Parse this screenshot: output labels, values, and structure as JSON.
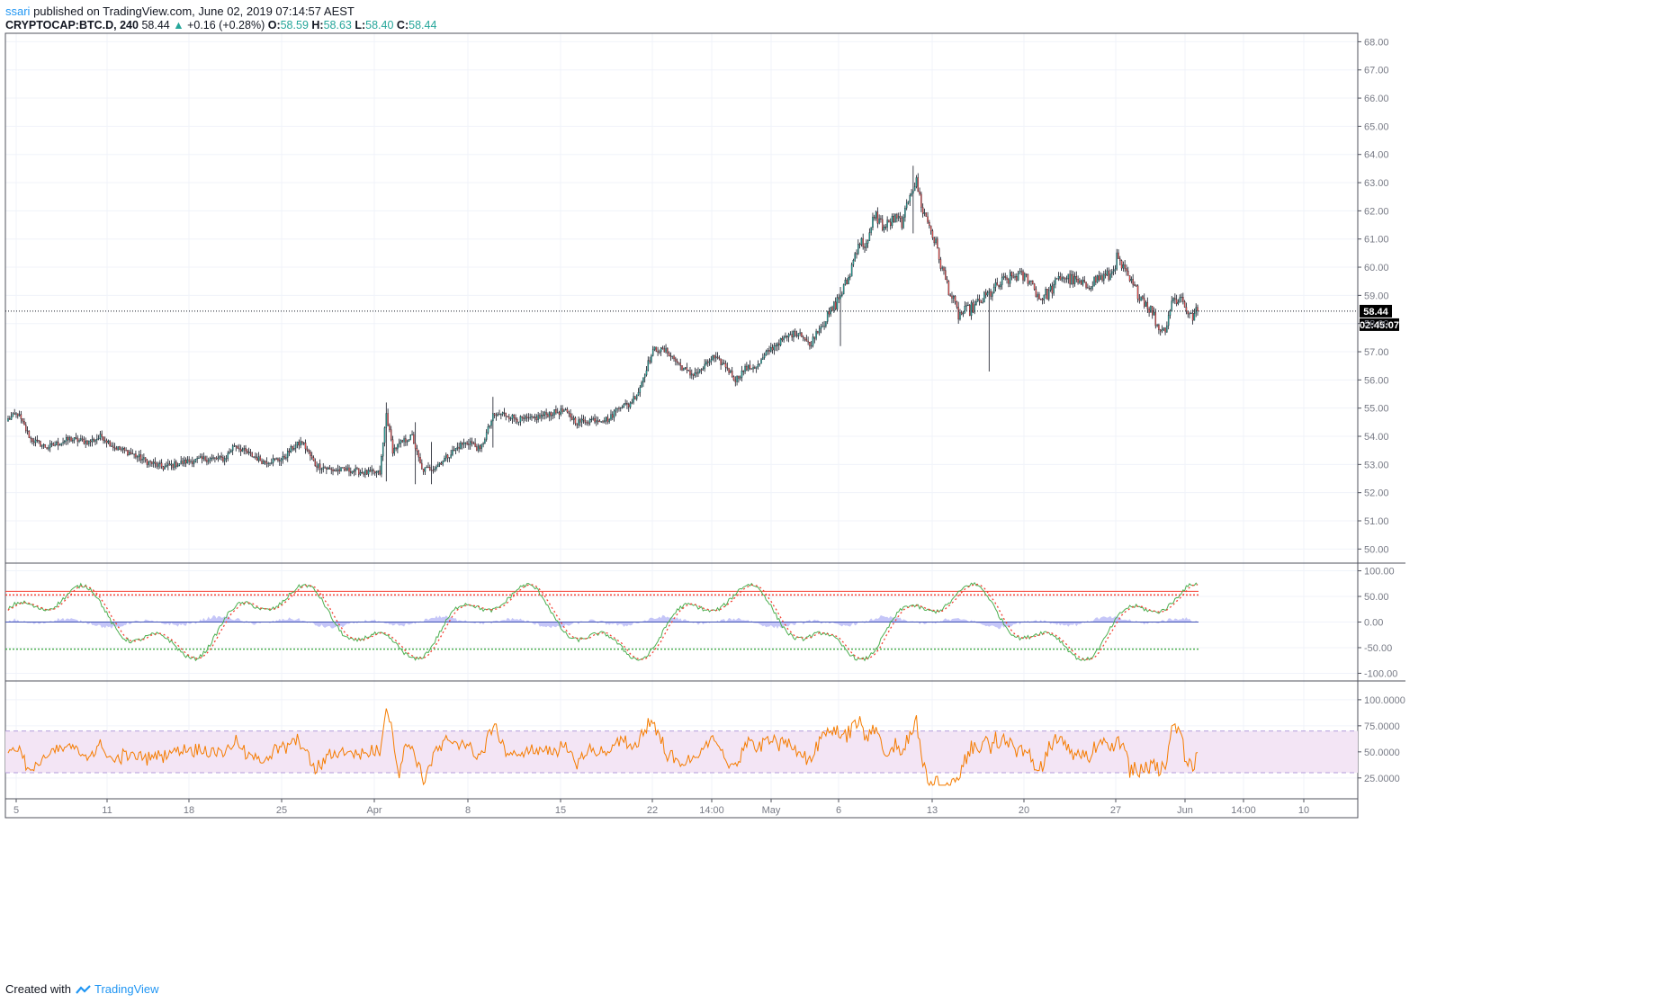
{
  "header": {
    "author": "ssari",
    "published_text": "published on TradingView.com, June 02, 2019 07:14:57 AEST",
    "symbol": "CRYPTOCAP:BTC.D, 240",
    "last": "58.44",
    "change": "+0.16 (+0.28%)",
    "o_label": "O:",
    "o": "58.59",
    "h_label": "H:",
    "h": "58.63",
    "l_label": "L:",
    "l": "58.40",
    "c_label": "C:",
    "c": "58.44"
  },
  "price_tag": {
    "value": "58.44",
    "countdown": "02:45:07"
  },
  "footer": {
    "created_with": "Created with",
    "brand": "TradingView"
  },
  "colors": {
    "up": "#26a69a",
    "down": "#ef5350",
    "wick": "#131722",
    "stoch_k": "#4caf50",
    "stoch_d": "#f44336",
    "histogram": "#9598f2",
    "rsi_line": "#f57c00",
    "rsi_band": "#f3e5f5",
    "grid": "#f0f3fa"
  },
  "chart_data": [
    {
      "type": "candlestick",
      "title": "CRYPTOCAP:BTC.D, 240",
      "xlabel": "",
      "ylabel": "",
      "x_ticks": [
        "5",
        "11",
        "18",
        "25",
        "Apr",
        "8",
        "15",
        "22",
        "14:00",
        "May",
        "6",
        "13",
        "20",
        "27",
        "Jun",
        "14:00",
        "10"
      ],
      "y_ticks": [
        "50.00",
        "51.00",
        "52.00",
        "53.00",
        "54.00",
        "55.00",
        "56.00",
        "57.00",
        "58.00",
        "59.00",
        "60.00",
        "61.00",
        "62.00",
        "63.00",
        "64.00",
        "65.00",
        "66.00",
        "67.00",
        "68.00"
      ],
      "ylim": [
        49.5,
        68.3
      ],
      "last_price": 58.44,
      "anchors": [
        [
          0,
          54.6
        ],
        [
          6,
          54.8
        ],
        [
          14,
          53.9
        ],
        [
          24,
          53.6
        ],
        [
          38,
          53.9
        ],
        [
          50,
          53.8
        ],
        [
          58,
          54.0
        ],
        [
          66,
          53.6
        ],
        [
          76,
          53.4
        ],
        [
          86,
          53.1
        ],
        [
          96,
          52.9
        ],
        [
          110,
          53.1
        ],
        [
          122,
          53.2
        ],
        [
          134,
          53.2
        ],
        [
          140,
          53.7
        ],
        [
          148,
          53.4
        ],
        [
          158,
          53.1
        ],
        [
          170,
          53.2
        ],
        [
          176,
          53.6
        ],
        [
          182,
          53.8
        ],
        [
          190,
          53.0
        ],
        [
          200,
          52.8
        ],
        [
          212,
          52.8
        ],
        [
          222,
          52.7
        ],
        [
          230,
          52.7
        ],
        [
          234,
          54.8
        ],
        [
          238,
          53.5
        ],
        [
          244,
          53.8
        ],
        [
          250,
          54.0
        ],
        [
          256,
          52.8
        ],
        [
          264,
          52.9
        ],
        [
          272,
          53.3
        ],
        [
          280,
          53.7
        ],
        [
          286,
          53.8
        ],
        [
          292,
          53.5
        ],
        [
          300,
          54.7
        ],
        [
          306,
          54.8
        ],
        [
          316,
          54.6
        ],
        [
          324,
          54.6
        ],
        [
          334,
          54.8
        ],
        [
          344,
          54.9
        ],
        [
          352,
          54.5
        ],
        [
          362,
          54.6
        ],
        [
          372,
          54.6
        ],
        [
          378,
          55.1
        ],
        [
          384,
          55.1
        ],
        [
          390,
          55.6
        ],
        [
          396,
          56.6
        ],
        [
          400,
          57.1
        ],
        [
          408,
          57.0
        ],
        [
          416,
          56.5
        ],
        [
          422,
          56.2
        ],
        [
          428,
          56.3
        ],
        [
          436,
          56.8
        ],
        [
          444,
          56.5
        ],
        [
          450,
          56.0
        ],
        [
          456,
          56.4
        ],
        [
          464,
          56.5
        ],
        [
          470,
          57.0
        ],
        [
          476,
          57.3
        ],
        [
          484,
          57.6
        ],
        [
          490,
          57.7
        ],
        [
          496,
          57.2
        ],
        [
          500,
          57.7
        ],
        [
          508,
          58.3
        ],
        [
          514,
          58.9
        ],
        [
          520,
          59.6
        ],
        [
          526,
          60.9
        ],
        [
          532,
          60.8
        ],
        [
          536,
          61.9
        ],
        [
          542,
          61.4
        ],
        [
          548,
          61.7
        ],
        [
          554,
          61.6
        ],
        [
          558,
          62.7
        ],
        [
          562,
          63.0
        ],
        [
          566,
          62.0
        ],
        [
          570,
          61.5
        ],
        [
          574,
          60.8
        ],
        [
          578,
          59.9
        ],
        [
          584,
          58.9
        ],
        [
          588,
          58.3
        ],
        [
          592,
          58.4
        ],
        [
          598,
          58.6
        ],
        [
          604,
          58.9
        ],
        [
          610,
          59.2
        ],
        [
          616,
          59.5
        ],
        [
          624,
          59.7
        ],
        [
          632,
          59.6
        ],
        [
          638,
          58.9
        ],
        [
          644,
          59.1
        ],
        [
          652,
          59.7
        ],
        [
          660,
          59.5
        ],
        [
          666,
          59.3
        ],
        [
          674,
          59.6
        ],
        [
          682,
          59.7
        ],
        [
          686,
          60.3
        ],
        [
          690,
          59.9
        ],
        [
          696,
          59.3
        ],
        [
          702,
          58.9
        ],
        [
          708,
          58.4
        ],
        [
          712,
          57.8
        ],
        [
          716,
          57.8
        ],
        [
          720,
          58.8
        ],
        [
          726,
          58.9
        ],
        [
          732,
          58.2
        ],
        [
          736,
          58.44
        ]
      ],
      "series": [
        {
          "name": "",
          "values": "see anchors"
        }
      ]
    },
    {
      "type": "line",
      "title": "",
      "y_ticks": [
        "-100.00",
        "-50.00",
        "0.00",
        "50.00",
        "100.00"
      ],
      "ylim": [
        -115,
        115
      ],
      "levels": {
        "upper": 60,
        "upper2": 53,
        "lower": -53
      },
      "series": [
        {
          "name": "",
          "shape": "oscillator"
        }
      ]
    },
    {
      "type": "line",
      "title": "",
      "y_ticks": [
        "25.0000",
        "50.0000",
        "75.0000",
        "100.0000"
      ],
      "ylim": [
        5,
        118
      ],
      "bands": {
        "upper": 70,
        "lower": 30
      },
      "series": [
        {
          "name": "",
          "shape": "rsi"
        }
      ]
    }
  ]
}
